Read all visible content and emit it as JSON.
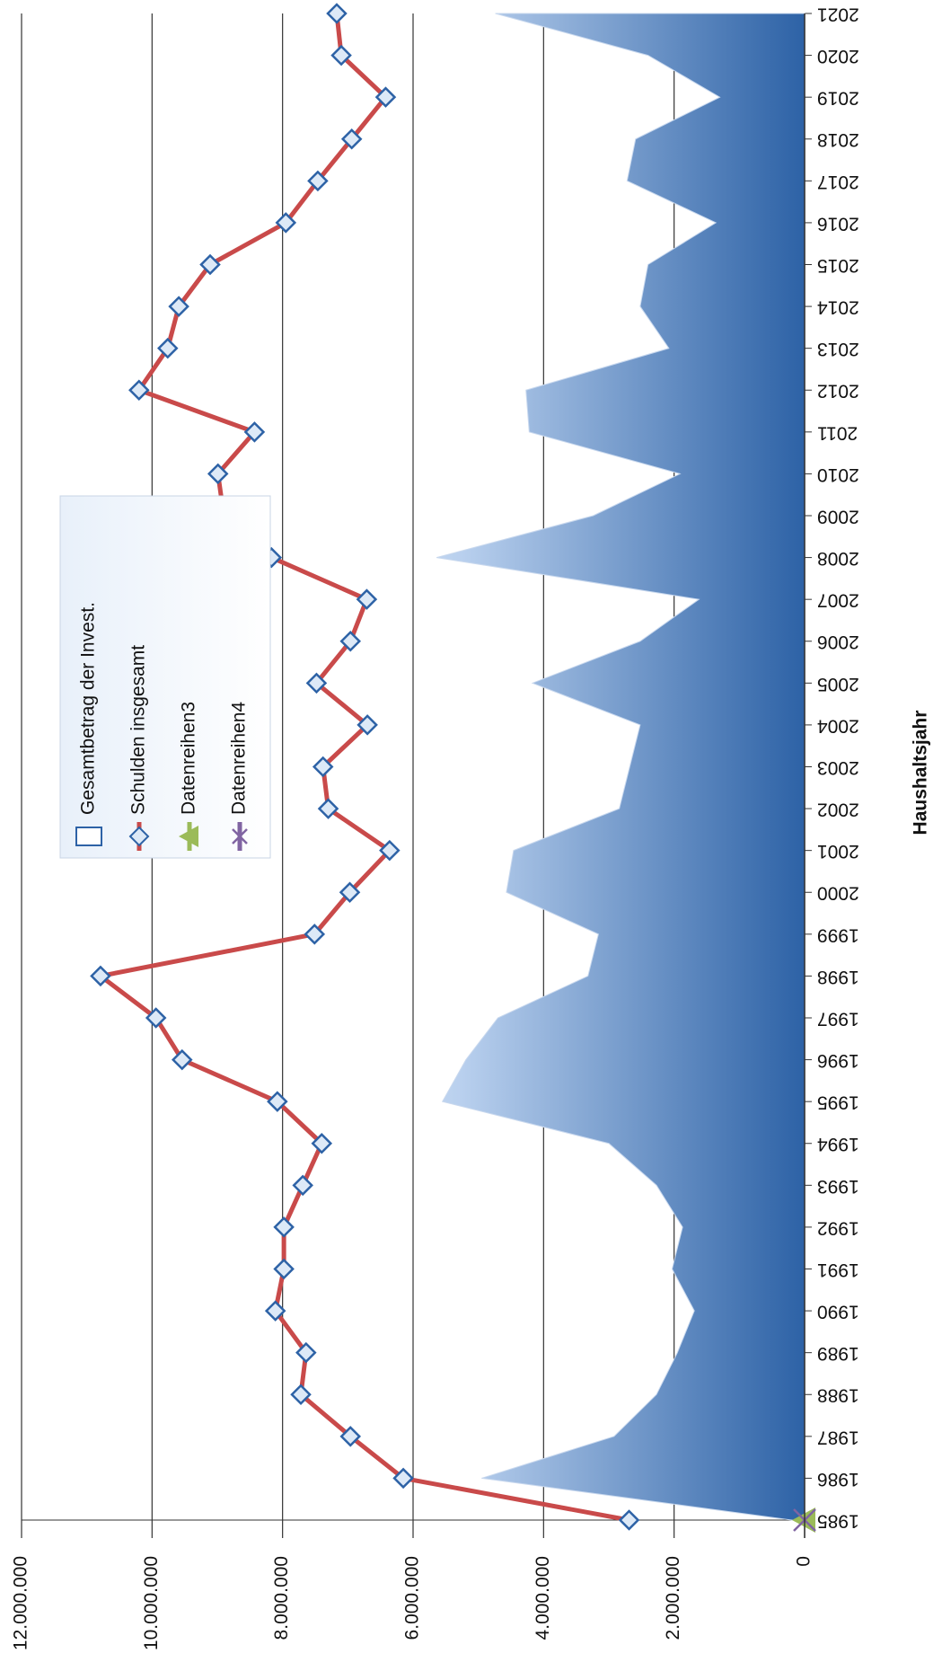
{
  "chart_data": {
    "type": "combo",
    "x_label": "Haushaltsjahr",
    "x": [
      1985,
      1986,
      1987,
      1988,
      1989,
      1990,
      1991,
      1992,
      1993,
      1994,
      1995,
      1996,
      1997,
      1998,
      1999,
      2000,
      2001,
      2002,
      2003,
      2004,
      2005,
      2006,
      2007,
      2008,
      2009,
      2010,
      2011,
      2012,
      2013,
      2014,
      2015,
      2016,
      2017,
      2018,
      2019,
      2020,
      2021
    ],
    "xlim": [
      1985,
      2021
    ],
    "ylim": [
      0,
      12000000
    ],
    "yticks": [
      0,
      {
        "value": 2000000,
        "label": "2.000.000"
      },
      {
        "value": 4000000,
        "label": "4.000.000"
      },
      {
        "value": 6000000,
        "label": "6.000.000"
      },
      {
        "value": 8000000,
        "label": "8.000.000"
      },
      {
        "value": 10000000,
        "label": "10.000.000"
      },
      {
        "value": 12000000,
        "label": "12.000.000"
      }
    ],
    "grid": true,
    "legend": "top-center",
    "series": [
      {
        "name": "Gesamtbetrag der Invest.",
        "type": "area",
        "color": "#2d62a6",
        "values": [
          200000,
          4950000,
          2920000,
          2270000,
          1950000,
          1690000,
          2030000,
          1870000,
          2270000,
          3000000,
          5550000,
          5190000,
          4700000,
          3320000,
          3160000,
          4570000,
          4460000,
          2840000,
          2680000,
          2520000,
          4170000,
          2520000,
          1620000,
          5640000,
          3240000,
          1910000,
          4220000,
          4270000,
          2080000,
          2520000,
          2400000,
          1360000,
          2720000,
          2590000,
          1300000,
          2400000,
          4740000
        ]
      },
      {
        "name": "Schulden insgesamt",
        "type": "line",
        "color": "#c94a4a",
        "values": [
          2690000,
          6150000,
          6960000,
          7720000,
          7640000,
          8110000,
          7980000,
          7980000,
          7690000,
          7400000,
          8080000,
          9540000,
          9940000,
          10790000,
          7510000,
          6970000,
          6360000,
          7300000,
          7380000,
          6700000,
          7480000,
          6960000,
          6710000,
          8170000,
          8900000,
          8990000,
          8430000,
          10200000,
          9760000,
          9590000,
          9110000,
          7950000,
          7460000,
          6940000,
          6420000,
          7100000,
          7170000
        ]
      },
      {
        "name": "Datenreihen3",
        "type": "triangle",
        "color": "#9bbb59",
        "values": [
          0,
          null,
          null,
          null,
          null,
          null,
          null,
          null,
          null,
          null,
          null,
          null,
          null,
          null,
          null,
          null,
          null,
          null,
          null,
          null,
          null,
          null,
          null,
          null,
          null,
          null,
          null,
          null,
          null,
          null,
          null,
          null,
          null,
          null,
          null,
          null,
          null
        ]
      },
      {
        "name": "Datenreihen4",
        "type": "cross",
        "color": "#8064a2",
        "values": [
          0,
          null,
          null,
          null,
          null,
          null,
          null,
          null,
          null,
          null,
          null,
          null,
          null,
          null,
          null,
          null,
          null,
          null,
          null,
          null,
          null,
          null,
          null,
          null,
          null,
          null,
          null,
          null,
          null,
          null,
          null,
          null,
          null,
          null,
          null,
          null,
          null
        ]
      }
    ]
  }
}
